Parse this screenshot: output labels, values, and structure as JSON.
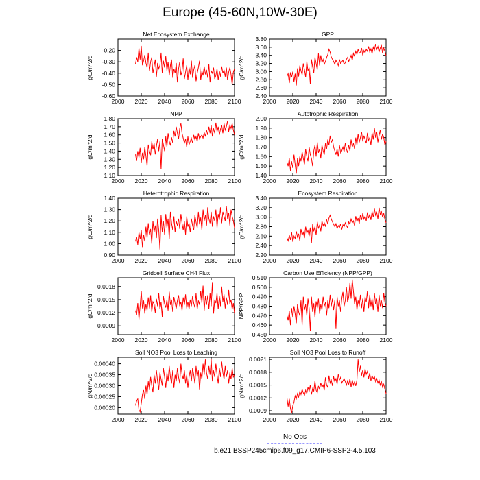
{
  "title": "Europe (45-60N,10W-30E)",
  "legend": {
    "obs_label": "No Obs",
    "model_label": "b.e21.BSSP245cmip6.f09_g17.CMIP6-SSP2-4.5.103",
    "obs_color": "#9999ff",
    "model_color": "#ff0000"
  },
  "chart_data": [
    {
      "type": "line",
      "title": "Net Ecosystem Exchange",
      "ylabel": "gC/m^2/d",
      "xlim": [
        2000,
        2100
      ],
      "ylim": [
        -0.6,
        -0.1
      ],
      "xticks": [
        "2000",
        "2020",
        "2040",
        "2060",
        "2080",
        "2100"
      ],
      "yticks": [
        "-0.20",
        "-0.30",
        "-0.40",
        "-0.50",
        "-0.60"
      ],
      "ytick_values": [
        -0.2,
        -0.3,
        -0.4,
        -0.5,
        -0.6
      ],
      "x_start": 2015,
      "values": [
        -0.32,
        -0.26,
        -0.3,
        -0.18,
        -0.28,
        -0.16,
        -0.33,
        -0.29,
        -0.24,
        -0.31,
        -0.35,
        -0.22,
        -0.38,
        -0.3,
        -0.26,
        -0.4,
        -0.34,
        -0.28,
        -0.43,
        -0.31,
        -0.36,
        -0.33,
        -0.22,
        -0.4,
        -0.29,
        -0.35,
        -0.25,
        -0.38,
        -0.3,
        -0.42,
        -0.33,
        -0.28,
        -0.44,
        -0.36,
        -0.4,
        -0.31,
        -0.48,
        -0.36,
        -0.3,
        -0.42,
        -0.38,
        -0.27,
        -0.45,
        -0.39,
        -0.33,
        -0.46,
        -0.35,
        -0.41,
        -0.29,
        -0.44,
        -0.37,
        -0.33,
        -0.47,
        -0.4,
        -0.35,
        -0.29,
        -0.46,
        -0.38,
        -0.42,
        -0.34,
        -0.41,
        -0.37,
        -0.44,
        -0.32,
        -0.48,
        -0.38,
        -0.4,
        -0.35,
        -0.45,
        -0.42,
        -0.36,
        -0.46,
        -0.38,
        -0.43,
        -0.34,
        -0.4,
        -0.37,
        -0.43,
        -0.35,
        -0.46,
        -0.39,
        -0.35,
        -0.41,
        -0.5,
        -0.39,
        -0.36
      ]
    },
    {
      "type": "line",
      "title": "GPP",
      "ylabel": "gC/m^2/d",
      "xlim": [
        2000,
        2100
      ],
      "ylim": [
        2.4,
        3.8
      ],
      "xticks": [
        "2000",
        "2020",
        "2040",
        "2060",
        "2080",
        "2100"
      ],
      "yticks": [
        "3.80",
        "3.60",
        "3.40",
        "3.20",
        "3.00",
        "2.80",
        "2.60",
        "2.40"
      ],
      "ytick_values": [
        3.8,
        3.6,
        3.4,
        3.2,
        3.0,
        2.8,
        2.6,
        2.4
      ],
      "x_start": 2015,
      "values": [
        2.88,
        2.95,
        2.72,
        2.98,
        2.86,
        3.0,
        2.75,
        2.95,
        2.66,
        3.08,
        2.88,
        3.15,
        3.02,
        2.92,
        3.2,
        3.05,
        2.86,
        3.25,
        3.02,
        3.1,
        2.7,
        3.3,
        3.12,
        2.97,
        3.35,
        3.2,
        3.05,
        3.45,
        3.15,
        3.4,
        3.22,
        3.3,
        3.18,
        3.25,
        3.35,
        3.42,
        3.55,
        3.48,
        3.36,
        3.3,
        3.25,
        3.18,
        3.28,
        3.22,
        3.15,
        3.3,
        3.2,
        3.24,
        3.28,
        3.18,
        3.22,
        3.3,
        3.35,
        3.25,
        3.32,
        3.4,
        3.28,
        3.45,
        3.38,
        3.5,
        3.42,
        3.55,
        3.45,
        3.48,
        3.58,
        3.4,
        3.52,
        3.46,
        3.55,
        3.5,
        3.62,
        3.48,
        3.56,
        3.44,
        3.6,
        3.52,
        3.68,
        3.55,
        3.62,
        3.48,
        3.58,
        3.65,
        3.45,
        3.58,
        3.5,
        3.38
      ]
    },
    {
      "type": "line",
      "title": "NPP",
      "ylabel": "gC/m^2/d",
      "xlim": [
        2000,
        2100
      ],
      "ylim": [
        1.1,
        1.8
      ],
      "xticks": [
        "2000",
        "2020",
        "2040",
        "2060",
        "2080",
        "2100"
      ],
      "yticks": [
        "1.80",
        "1.70",
        "1.60",
        "1.50",
        "1.40",
        "1.30",
        "1.20",
        "1.10"
      ],
      "ytick_values": [
        1.8,
        1.7,
        1.6,
        1.5,
        1.4,
        1.3,
        1.2,
        1.1
      ],
      "x_start": 2015,
      "values": [
        1.36,
        1.28,
        1.4,
        1.32,
        1.44,
        1.26,
        1.38,
        1.3,
        1.45,
        1.34,
        1.22,
        1.48,
        1.4,
        1.35,
        1.52,
        1.42,
        1.5,
        1.36,
        1.46,
        1.55,
        1.4,
        1.52,
        1.18,
        1.55,
        1.48,
        1.4,
        1.58,
        1.45,
        1.62,
        1.52,
        1.47,
        1.57,
        1.5,
        1.65,
        1.58,
        1.7,
        1.62,
        1.55,
        1.68,
        1.74,
        1.62,
        1.56,
        1.5,
        1.55,
        1.45,
        1.58,
        1.48,
        1.52,
        1.56,
        1.5,
        1.6,
        1.54,
        1.58,
        1.52,
        1.62,
        1.55,
        1.58,
        1.6,
        1.56,
        1.63,
        1.58,
        1.66,
        1.6,
        1.7,
        1.62,
        1.72,
        1.58,
        1.68,
        1.62,
        1.75,
        1.64,
        1.7,
        1.6,
        1.67,
        1.72,
        1.62,
        1.74,
        1.66,
        1.7,
        1.77,
        1.64,
        1.72,
        1.68,
        1.74,
        1.66,
        1.6
      ]
    },
    {
      "type": "line",
      "title": "Autotrophic Respiration",
      "ylabel": "gC/m^2/d",
      "xlim": [
        2000,
        2100
      ],
      "ylim": [
        1.4,
        2.0
      ],
      "xticks": [
        "2000",
        "2020",
        "2040",
        "2060",
        "2080",
        "2100"
      ],
      "yticks": [
        "2.00",
        "1.90",
        "1.80",
        "1.70",
        "1.60",
        "1.50",
        "1.40"
      ],
      "ytick_values": [
        2.0,
        1.9,
        1.8,
        1.7,
        1.6,
        1.5,
        1.4
      ],
      "x_start": 2015,
      "values": [
        1.54,
        1.5,
        1.58,
        1.45,
        1.55,
        1.48,
        1.62,
        1.52,
        1.42,
        1.58,
        1.5,
        1.6,
        1.55,
        1.65,
        1.58,
        1.52,
        1.68,
        1.6,
        1.55,
        1.7,
        1.62,
        1.58,
        1.5,
        1.66,
        1.72,
        1.6,
        1.75,
        1.64,
        1.68,
        1.58,
        1.72,
        1.66,
        1.62,
        1.74,
        1.68,
        1.78,
        1.72,
        1.82,
        1.75,
        1.78,
        1.7,
        1.66,
        1.62,
        1.68,
        1.6,
        1.72,
        1.64,
        1.66,
        1.7,
        1.65,
        1.74,
        1.68,
        1.64,
        1.72,
        1.66,
        1.78,
        1.7,
        1.74,
        1.68,
        1.8,
        1.72,
        1.84,
        1.75,
        1.8,
        1.86,
        1.76,
        1.82,
        1.78,
        1.74,
        1.85,
        1.77,
        1.8,
        1.72,
        1.85,
        1.78,
        1.9,
        1.8,
        1.86,
        1.75,
        1.82,
        1.88,
        1.78,
        1.84,
        1.8,
        1.72,
        1.76
      ]
    },
    {
      "type": "line",
      "title": "Heterotrophic Respiration",
      "ylabel": "gC/m^2/d",
      "xlim": [
        2000,
        2100
      ],
      "ylim": [
        0.9,
        1.4
      ],
      "xticks": [
        "2000",
        "2020",
        "2040",
        "2060",
        "2080",
        "2100"
      ],
      "yticks": [
        "1.40",
        "1.30",
        "1.20",
        "1.10",
        "1.00",
        "0.90"
      ],
      "ytick_values": [
        1.4,
        1.3,
        1.2,
        1.1,
        1.0,
        0.9
      ],
      "x_start": 2015,
      "values": [
        1.02,
        1.06,
        0.99,
        1.1,
        1.04,
        1.12,
        0.97,
        1.08,
        1.02,
        1.15,
        1.05,
        1.18,
        1.08,
        1.13,
        1.0,
        1.2,
        1.1,
        1.16,
        1.05,
        1.22,
        1.12,
        0.95,
        1.25,
        1.1,
        1.2,
        1.08,
        1.26,
        1.14,
        1.22,
        1.04,
        1.28,
        1.18,
        1.12,
        1.24,
        1.1,
        1.2,
        1.16,
        1.22,
        1.13,
        1.26,
        1.18,
        1.12,
        1.2,
        1.08,
        1.24,
        1.15,
        1.18,
        1.1,
        1.22,
        1.16,
        1.12,
        1.25,
        1.19,
        1.14,
        1.28,
        1.17,
        1.23,
        1.12,
        1.3,
        1.2,
        1.25,
        1.16,
        1.32,
        1.22,
        1.18,
        1.28,
        1.15,
        1.24,
        1.2,
        1.3,
        1.14,
        1.26,
        1.21,
        1.32,
        1.18,
        1.28,
        1.24,
        1.2,
        1.33,
        1.22,
        1.27,
        1.16,
        1.3,
        1.24,
        1.2,
        1.14
      ]
    },
    {
      "type": "line",
      "title": "Ecosystem Respiration",
      "ylabel": "gC/m^2/d",
      "xlim": [
        2000,
        2100
      ],
      "ylim": [
        2.2,
        3.4
      ],
      "xticks": [
        "2000",
        "2020",
        "2040",
        "2060",
        "2080",
        "2100"
      ],
      "yticks": [
        "3.40",
        "3.20",
        "3.00",
        "2.80",
        "2.60",
        "2.40",
        "2.20"
      ],
      "ytick_values": [
        3.4,
        3.2,
        3.0,
        2.8,
        2.6,
        2.4,
        2.2
      ],
      "x_start": 2015,
      "values": [
        2.56,
        2.5,
        2.62,
        2.52,
        2.68,
        2.48,
        2.6,
        2.55,
        2.7,
        2.58,
        2.65,
        2.5,
        2.75,
        2.62,
        2.68,
        2.56,
        2.8,
        2.66,
        2.72,
        2.6,
        2.78,
        2.45,
        2.85,
        2.7,
        2.8,
        2.62,
        2.9,
        2.76,
        2.84,
        2.7,
        2.92,
        2.82,
        2.88,
        2.8,
        2.95,
        2.85,
        2.98,
        3.04,
        2.96,
        2.9,
        2.85,
        2.8,
        2.86,
        2.76,
        2.82,
        2.78,
        2.86,
        2.74,
        2.84,
        2.8,
        2.88,
        2.82,
        2.78,
        2.9,
        2.85,
        2.96,
        2.88,
        2.92,
        2.82,
        3.02,
        2.9,
        2.98,
        2.86,
        3.05,
        2.94,
        3.08,
        2.96,
        3.02,
        2.92,
        3.1,
        2.98,
        3.06,
        2.94,
        3.12,
        3.0,
        3.18,
        3.04,
        3.1,
        2.96,
        3.2,
        3.06,
        3.12,
        3.0,
        3.08,
        2.95,
        2.88
      ]
    },
    {
      "type": "line",
      "title": "Gridcell Surface CH4 Flux",
      "ylabel": "gC/m^2/d",
      "xlim": [
        2000,
        2100
      ],
      "ylim": [
        0.0007,
        0.002
      ],
      "xticks": [
        "2000",
        "2020",
        "2040",
        "2060",
        "2080",
        "2100"
      ],
      "yticks": [
        "0.0018",
        "0.0015",
        "0.0012",
        "0.0009"
      ],
      "ytick_values": [
        0.0018,
        0.0015,
        0.0012,
        0.0009
      ],
      "x_start": 2015,
      "values": [
        0.00125,
        0.00115,
        0.00142,
        0.00105,
        0.00135,
        0.0017,
        0.0013,
        0.00148,
        0.00118,
        0.0014,
        0.00125,
        0.00155,
        0.0013,
        0.0016,
        0.00122,
        0.00145,
        0.0014,
        0.0012,
        0.00152,
        0.00135,
        0.00165,
        0.00128,
        0.00145,
        0.0011,
        0.00158,
        0.0014,
        0.00132,
        0.0015,
        0.00125,
        0.00168,
        0.00138,
        0.0015,
        0.00122,
        0.00156,
        0.00142,
        0.0013,
        0.00148,
        0.0016,
        0.00135,
        0.00145,
        0.00125,
        0.00155,
        0.00138,
        0.00162,
        0.0013,
        0.00145,
        0.00128,
        0.0015,
        0.00135,
        0.00158,
        0.00142,
        0.00132,
        0.00165,
        0.00128,
        0.00148,
        0.00138,
        0.0017,
        0.00142,
        0.00182,
        0.00125,
        0.00158,
        0.00138,
        0.0016,
        0.00128,
        0.00165,
        0.00135,
        0.0019,
        0.00118,
        0.0015,
        0.00142,
        0.00165,
        0.00128,
        0.00158,
        0.00135,
        0.0018,
        0.00145,
        0.00162,
        0.0013,
        0.00155,
        0.00138,
        0.00172,
        0.0014,
        0.0015,
        0.00128,
        0.00142,
        0.00118
      ]
    },
    {
      "type": "line",
      "title": "Carbon Use Efficiency (NPP/GPP)",
      "ylabel": "NPP/GPP",
      "xlim": [
        2000,
        2100
      ],
      "ylim": [
        0.45,
        0.51
      ],
      "xticks": [
        "2000",
        "2020",
        "2040",
        "2060",
        "2080",
        "2100"
      ],
      "yticks": [
        "0.510",
        "0.500",
        "0.490",
        "0.480",
        "0.470",
        "0.460",
        "0.450"
      ],
      "ytick_values": [
        0.51,
        0.5,
        0.49,
        0.48,
        0.47,
        0.46,
        0.45
      ],
      "x_start": 2015,
      "values": [
        0.47,
        0.465,
        0.475,
        0.46,
        0.478,
        0.468,
        0.48,
        0.472,
        0.462,
        0.482,
        0.474,
        0.47,
        0.486,
        0.46,
        0.49,
        0.476,
        0.482,
        0.47,
        0.488,
        0.478,
        0.454,
        0.49,
        0.474,
        0.483,
        0.468,
        0.485,
        0.478,
        0.488,
        0.472,
        0.482,
        0.476,
        0.49,
        0.48,
        0.484,
        0.47,
        0.486,
        0.478,
        0.492,
        0.48,
        0.488,
        0.476,
        0.486,
        0.456,
        0.49,
        0.48,
        0.486,
        0.474,
        0.488,
        0.495,
        0.48,
        0.486,
        0.5,
        0.484,
        0.49,
        0.505,
        0.488,
        0.508,
        0.496,
        0.482,
        0.49,
        0.476,
        0.486,
        0.48,
        0.492,
        0.478,
        0.488,
        0.474,
        0.49,
        0.484,
        0.496,
        0.478,
        0.492,
        0.48,
        0.488,
        0.476,
        0.494,
        0.482,
        0.488,
        0.474,
        0.492,
        0.48,
        0.486,
        0.478,
        0.494,
        0.484,
        0.48
      ]
    },
    {
      "type": "line",
      "title": "Soil NO3 Pool Loss to Leaching",
      "ylabel": "gN/m^2/d",
      "xlim": [
        2000,
        2100
      ],
      "ylim": [
        0.00017,
        0.00043
      ],
      "xticks": [
        "2000",
        "2020",
        "2040",
        "2060",
        "2080",
        "2100"
      ],
      "yticks": [
        "0.00040",
        "0.00035",
        "0.00030",
        "0.00025",
        "0.00020"
      ],
      "ytick_values": [
        0.0004,
        0.00035,
        0.0003,
        0.00025,
        0.0002
      ],
      "x_start": 2015,
      "values": [
        0.00021,
        0.00023,
        0.00024,
        0.00019,
        0.00018,
        0.00022,
        0.00026,
        0.00028,
        0.00024,
        0.0003,
        0.00026,
        0.00032,
        0.00028,
        0.00034,
        0.0003,
        0.00027,
        0.00035,
        0.00031,
        0.00037,
        0.00032,
        0.00028,
        0.00036,
        0.00033,
        0.0003,
        0.00038,
        0.00034,
        0.00029,
        0.00036,
        0.00032,
        0.00039,
        0.00034,
        0.00031,
        0.00037,
        0.00029,
        0.00035,
        0.00032,
        0.00038,
        0.00034,
        0.00031,
        0.0004,
        0.00035,
        0.00033,
        0.00037,
        0.00031,
        0.00035,
        0.00029,
        0.00034,
        0.00037,
        0.00032,
        0.00038,
        0.00035,
        0.00031,
        0.00039,
        0.00034,
        0.00037,
        0.00028,
        0.00036,
        0.00033,
        0.0004,
        0.00035,
        0.00042,
        0.00036,
        0.00033,
        0.00039,
        0.00035,
        0.00042,
        0.00032,
        0.00037,
        0.00034,
        0.0004,
        0.00035,
        0.00031,
        0.00038,
        0.00034,
        0.00041,
        0.00036,
        0.00033,
        0.00039,
        0.00034,
        0.00037,
        0.00031,
        0.00036,
        0.00033,
        0.00038,
        0.00034,
        0.00035
      ]
    },
    {
      "type": "line",
      "title": "Soil NO3 Pool Loss to Runoff",
      "ylabel": "gN/m^2/d",
      "xlim": [
        2000,
        2100
      ],
      "ylim": [
        0.00082,
        0.00215
      ],
      "xticks": [
        "2000",
        "2020",
        "2040",
        "2060",
        "2080",
        "2100"
      ],
      "yticks": [
        "0.0021",
        "0.0018",
        "0.0015",
        "0.0012",
        "0.0009"
      ],
      "ytick_values": [
        0.0021,
        0.0018,
        0.0015,
        0.0012,
        0.0009
      ],
      "x_start": 2015,
      "values": [
        0.0012,
        0.001,
        0.00118,
        0.00095,
        0.00085,
        0.00102,
        0.0011,
        0.00125,
        0.00118,
        0.0013,
        0.00122,
        0.00135,
        0.00128,
        0.0014,
        0.00132,
        0.00126,
        0.00138,
        0.0013,
        0.00145,
        0.00135,
        0.0015,
        0.00128,
        0.00142,
        0.00136,
        0.0016,
        0.00138,
        0.00132,
        0.00148,
        0.0014,
        0.00155,
        0.00145,
        0.0015,
        0.00138,
        0.00168,
        0.0015,
        0.00145,
        0.00172,
        0.00155,
        0.00162,
        0.00148,
        0.0017,
        0.00158,
        0.00165,
        0.00152,
        0.00175,
        0.00162,
        0.00168,
        0.00155,
        0.0016,
        0.00165,
        0.00158,
        0.0015,
        0.0016,
        0.00152,
        0.00165,
        0.00145,
        0.00162,
        0.0015,
        0.00158,
        0.00148,
        0.00162,
        0.0021,
        0.0018,
        0.00195,
        0.00172,
        0.00185,
        0.00168,
        0.00188,
        0.00175,
        0.00182,
        0.00165,
        0.00178,
        0.0016,
        0.00172,
        0.00165,
        0.0017,
        0.00158,
        0.00165,
        0.00155,
        0.00162,
        0.0015,
        0.00158,
        0.00145,
        0.00152,
        0.0014,
        0.0013
      ]
    }
  ]
}
